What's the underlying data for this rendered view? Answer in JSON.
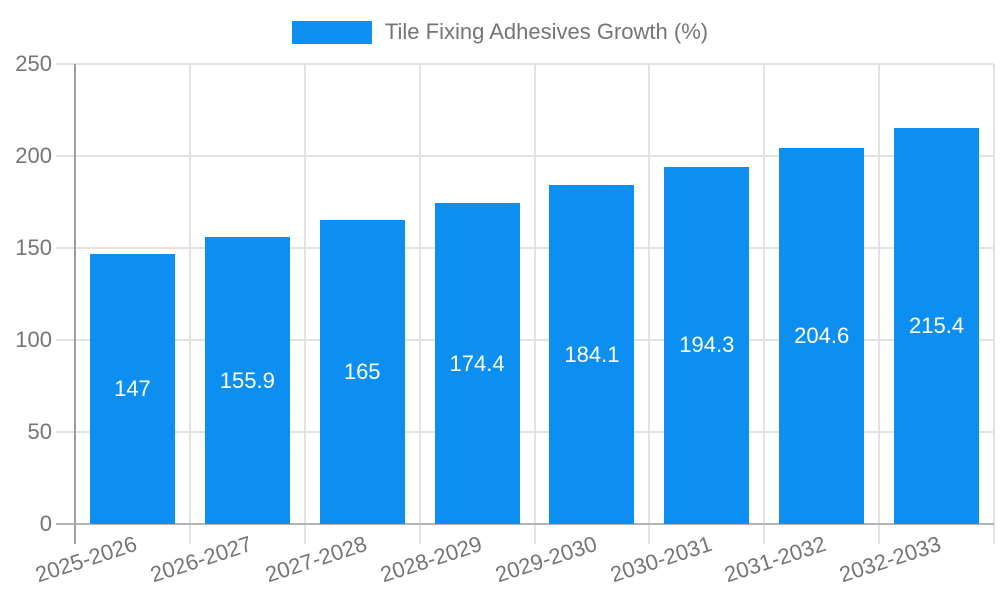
{
  "legend": {
    "label": "Tile Fixing Adhesives Growth (%)"
  },
  "colors": {
    "bar": "#0D8FF2",
    "grid": "#E2E2E2",
    "y_axis": "#9E9E9E",
    "baseline": "#B3B3B3",
    "tick_text": "#757575",
    "value_label_text": "#FFFFFF",
    "background": "#FFFFFF"
  },
  "chart_data": {
    "type": "bar",
    "title": "Tile Fixing Adhesives Growth (%)",
    "categories": [
      "2025-2026",
      "2026-2027",
      "2027-2028",
      "2028-2029",
      "2029-2030",
      "2030-2031",
      "2031-2032",
      "2032-2033"
    ],
    "values": [
      147,
      155.9,
      165,
      174.4,
      184.1,
      194.3,
      204.6,
      215.4
    ],
    "xlabel": "",
    "ylabel": "",
    "ylim": [
      0,
      250
    ],
    "yticks": [
      0,
      50,
      100,
      150,
      200,
      250
    ],
    "grid": true,
    "legend_position": "top",
    "value_labels": "inside-center"
  }
}
